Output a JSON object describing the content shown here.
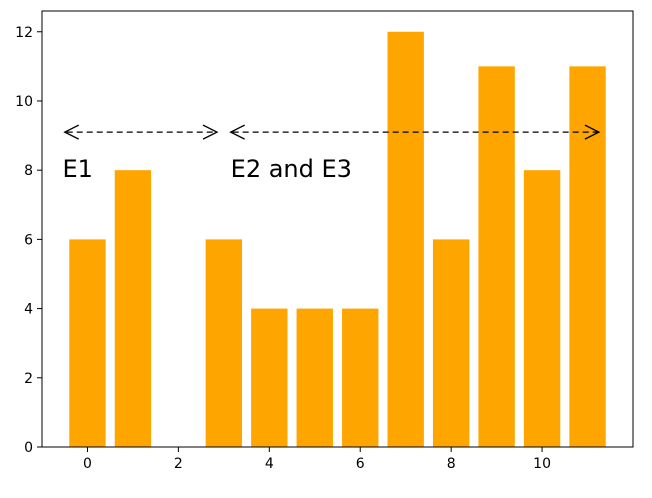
{
  "chart_data": {
    "type": "bar",
    "x": [
      0,
      1,
      2,
      3,
      4,
      5,
      6,
      7,
      8,
      9,
      10,
      11
    ],
    "values": [
      6,
      8,
      0,
      6,
      4,
      4,
      4,
      12,
      6,
      11,
      8,
      11
    ],
    "bar_color": "#ffa500",
    "title": "",
    "xlabel": "",
    "ylabel": "",
    "xlim": [
      -1,
      12
    ],
    "ylim": [
      0,
      12.6
    ],
    "xticks": [
      0,
      2,
      4,
      6,
      8,
      10
    ],
    "yticks": [
      0,
      2,
      4,
      6,
      8,
      10,
      12
    ],
    "grid": false,
    "annotations": [
      {
        "text": "E1",
        "x": -0.55,
        "y": 7.8
      },
      {
        "text": "E2 and E3",
        "x": 3.15,
        "y": 7.8
      }
    ],
    "arrows": [
      {
        "x_start": -0.5,
        "x_end": 2.85,
        "y": 9.1,
        "style": "dashed",
        "heads": "both"
      },
      {
        "x_start": 3.15,
        "x_end": 11.25,
        "y": 9.1,
        "style": "dashed",
        "heads": "both"
      }
    ]
  }
}
